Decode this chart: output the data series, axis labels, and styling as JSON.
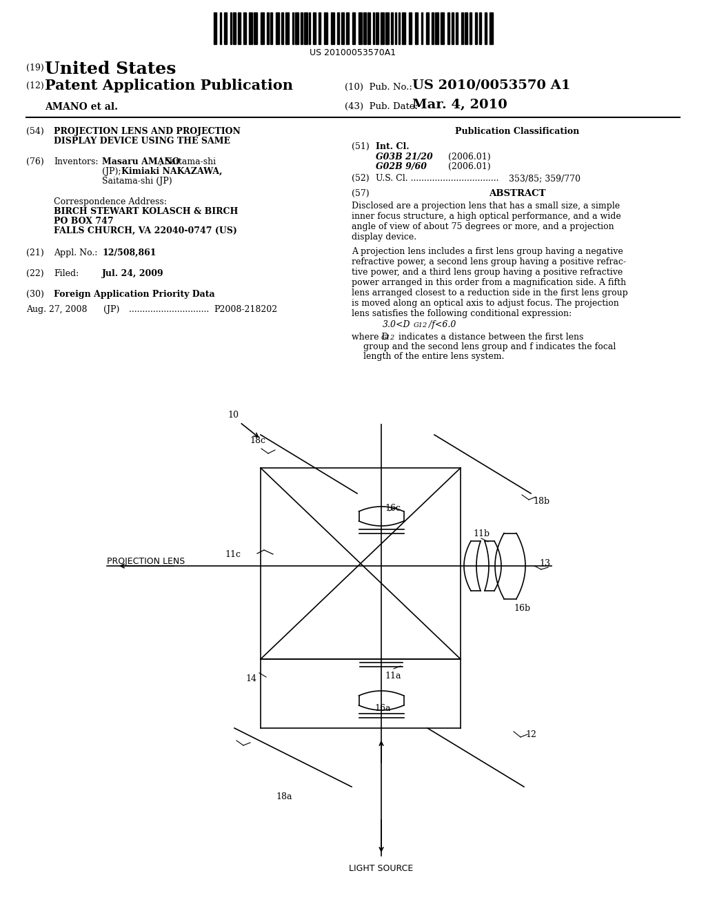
{
  "background_color": "#ffffff",
  "fig_width": 10.24,
  "fig_height": 13.2,
  "dpi": 100,
  "header": {
    "barcode_text": "US 20100053570A1",
    "pub_no_value": "US 2010/0053570 A1",
    "author": "AMANO et al.",
    "pub_date_value": "Mar. 4, 2010"
  },
  "left_col": {
    "field54_line1": "PROJECTION LENS AND PROJECTION",
    "field54_line2": "DISPLAY DEVICE USING THE SAME",
    "inventor_name1": "Masaru AMANO",
    "inventor_rest1": ", Saitama-shi",
    "inventor_line2a": "(JP); ",
    "inventor_name2": "Kimiaki NAKAZAWA,",
    "inventor_line3": "Saitama-shi (JP)",
    "corr_label": "Correspondence Address:",
    "corr1": "BIRCH STEWART KOLASCH & BIRCH",
    "corr2": "PO BOX 747",
    "corr3": "FALLS CHURCH, VA 22040-0747 (US)",
    "appl_value": "12/508,861",
    "filed_value": "Jul. 24, 2009",
    "priority_key": "Foreign Application Priority Data",
    "priority_date": "Aug. 27, 2008",
    "priority_country": "(JP)",
    "priority_dots": " ..............................",
    "priority_number": "P2008-218202"
  },
  "right_col": {
    "pub_class_title": "Publication Classification",
    "int_cl_class1": "G03B 21/20",
    "int_cl_year1": "(2006.01)",
    "int_cl_class2": "G02B 9/60",
    "int_cl_year2": "(2006.01)",
    "us_cl_dots": "U.S. Cl. .................................",
    "us_cl_value": "353/85; 359/770",
    "abstract_title": "ABSTRACT",
    "abs1": "Disclosed are a projection lens that has a small size, a simple\ninner focus structure, a high optical performance, and a wide\nangle of view of about 75 degrees or more, and a projection\ndisplay device.",
    "abs2": "A projection lens includes a first lens group having a negative\nrefractive power, a second lens group having a positive refrac-\ntive power, and a third lens group having a positive refractive\npower arranged in this order from a magnification side. A fifth\nlens arranged closest to a reduction side in the first lens group\nis moved along an optical axis to adjust focus. The projection\nlens satisfies the following conditional expression:",
    "formula": "3.0<DG12/f<6.0",
    "abs3a": "where D",
    "abs3sub": "G12",
    "abs3b": " indicates a distance between the first lens\ngroup and the second lens group and f indicates the focal\nlength of the entire lens system."
  },
  "diagram": {
    "label_10": "10",
    "label_11a": "11a",
    "label_11b": "11b",
    "label_11c": "11c",
    "label_12": "12",
    "label_13": "13",
    "label_14": "14",
    "label_16a": "16a",
    "label_16b": "16b",
    "label_16c": "16c",
    "label_18a": "18a",
    "label_18b": "18b",
    "label_18c": "18c",
    "projection_lens_label": "PROJECTION LENS",
    "light_source_label": "LIGHT SOURCE"
  }
}
